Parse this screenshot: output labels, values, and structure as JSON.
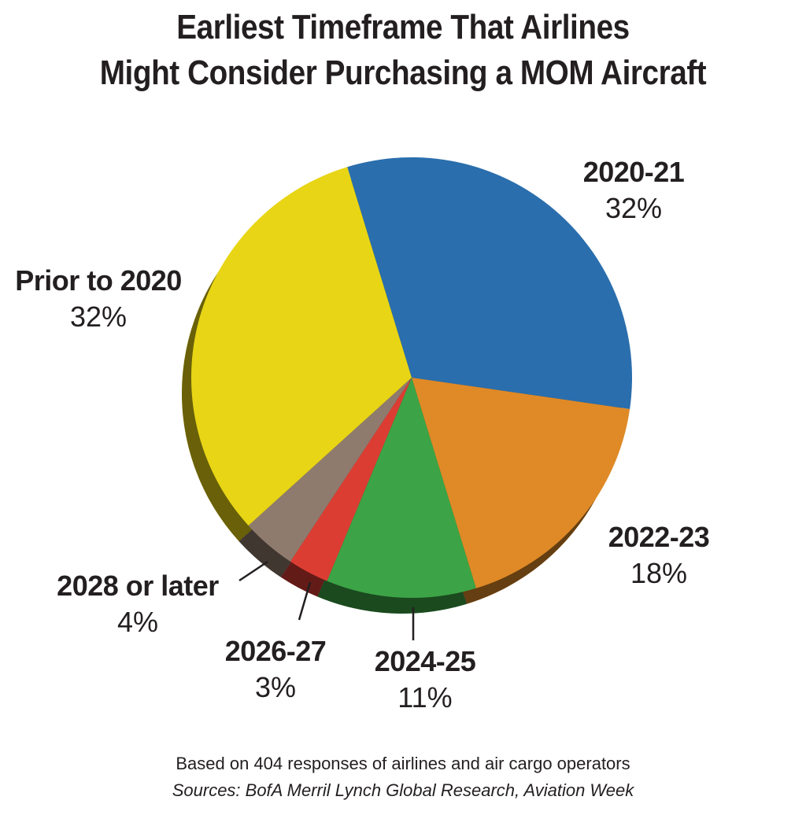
{
  "title_lines": [
    "Earliest Timeframe That Airlines",
    "Might Consider Purchasing a MOM Aircraft"
  ],
  "colors": {
    "prior_2020": "#e8d515",
    "y2020_21": "#2a6ead",
    "y2022_23": "#df8a27",
    "y2024_25": "#3ca446",
    "y2026_27": "#dc3d33",
    "y2028_later": "#8f7b6d"
  },
  "chart_data": {
    "type": "pie",
    "title": "Earliest Timeframe That Airlines Might Consider Purchasing a MOM Aircraft",
    "unit": "%",
    "slices": [
      {
        "label": "2020-21",
        "value": 32,
        "display": "32%",
        "color": "#2a6ead"
      },
      {
        "label": "2022-23",
        "value": 18,
        "display": "18%",
        "color": "#df8a27"
      },
      {
        "label": "2024-25",
        "value": 11,
        "display": "11%",
        "color": "#3ca446"
      },
      {
        "label": "2026-27",
        "value": 3,
        "display": "3%",
        "color": "#dc3d33"
      },
      {
        "label": "2028 or later",
        "value": 4,
        "display": "4%",
        "color": "#8f7b6d"
      },
      {
        "label": "Prior to 2020",
        "value": 32,
        "display": "32%",
        "color": "#e8d515"
      }
    ]
  },
  "footnote": "Based on 404 responses of airlines and air cargo operators",
  "sources": "Sources: BofA Merril Lynch Global Research, Aviation Week"
}
